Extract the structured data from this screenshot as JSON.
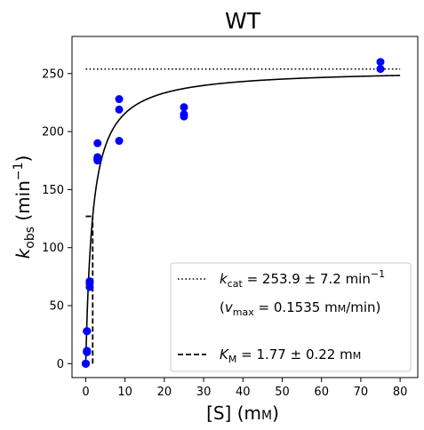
{
  "chart_data": {
    "type": "scatter",
    "title": "WT",
    "xlabel": {
      "main": "[S] (m",
      "unit_small": "M",
      "close": ")"
    },
    "ylabel": {
      "k": "k",
      "sub": "obs",
      "rest": " (min",
      "sup": "−1",
      "close": ")"
    },
    "xlim": [
      -3.5,
      84.5
    ],
    "ylim": [
      -12,
      282
    ],
    "xticks": [
      0,
      10,
      20,
      30,
      40,
      50,
      60,
      70,
      80
    ],
    "yticks": [
      0,
      50,
      100,
      150,
      200,
      250
    ],
    "grid": false,
    "points": {
      "color": "#0000ff",
      "x": [
        0,
        0,
        0,
        0,
        0,
        0.3,
        0.3,
        0.3,
        0.3,
        0.3,
        0.3,
        0.3,
        0.3,
        0.3,
        1,
        1,
        1,
        3,
        3,
        3,
        3,
        3,
        3,
        8.5,
        8.5,
        8.5,
        25,
        25,
        25,
        75,
        75
      ],
      "y": [
        0,
        0,
        0,
        0,
        0,
        10,
        11,
        11,
        10,
        10,
        28,
        28,
        28,
        28,
        66,
        69,
        71,
        190,
        178,
        177,
        176,
        175,
        176,
        228,
        219,
        192,
        221,
        215,
        213,
        260,
        254
      ]
    },
    "fit": {
      "kcat": 253.9,
      "KM": 1.77,
      "x_range": [
        0,
        80
      ]
    },
    "kcat_line": {
      "y": 253.9,
      "x_range": [
        0,
        80
      ],
      "style": "dotted"
    },
    "KM_marker": {
      "x": 1.77,
      "y_range": [
        0,
        126.95
      ],
      "style": "dashed"
    },
    "legend": {
      "placement": "bottom-right",
      "kcat": {
        "k": "k",
        "sub": "cat",
        "value": " = 253.9 ± 7.2 min",
        "sup": "−1"
      },
      "vmax": {
        "open": "(",
        "v": "v",
        "sub": "max",
        "value": " = 0.1535 m",
        "unit_small": "M",
        "close": "/min)"
      },
      "KM": {
        "K": "K",
        "sub": "M",
        "value": " = 1.77 ± 0.22 m",
        "unit_small": "M"
      }
    }
  }
}
